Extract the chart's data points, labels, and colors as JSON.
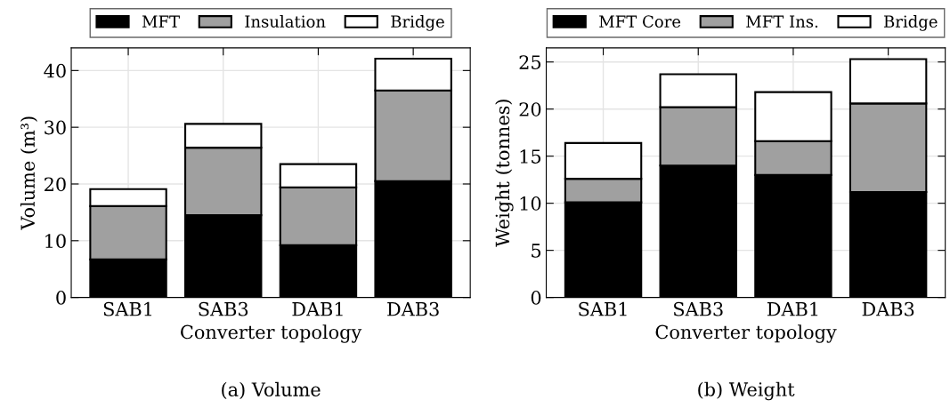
{
  "chart_data": [
    {
      "type": "bar",
      "stacked": true,
      "xlabel": "Converter topology",
      "ylabel": "Volume (m³)",
      "categories": [
        "SAB1",
        "SAB3",
        "DAB1",
        "DAB3"
      ],
      "series": [
        {
          "name": "MFT",
          "color": "#000000",
          "values": [
            6.7,
            14.5,
            9.2,
            20.5
          ]
        },
        {
          "name": "Insulation",
          "color": "#a0a0a0",
          "values": [
            9.4,
            11.9,
            10.2,
            16.0
          ]
        },
        {
          "name": "Bridge",
          "color": "#ffffff",
          "values": [
            3.0,
            4.2,
            4.1,
            5.6
          ]
        }
      ],
      "ylim": [
        0,
        44
      ],
      "yticks": [
        0,
        10,
        20,
        30,
        40
      ],
      "grid": true,
      "legend": "top",
      "annotations": [
        "(a) Volume"
      ]
    },
    {
      "type": "bar",
      "stacked": true,
      "xlabel": "Converter topology",
      "ylabel": "Weight (tonnes)",
      "categories": [
        "SAB1",
        "SAB3",
        "DAB1",
        "DAB3"
      ],
      "series": [
        {
          "name": "MFT Core",
          "color": "#000000",
          "values": [
            10.1,
            14.0,
            13.0,
            11.2
          ]
        },
        {
          "name": "MFT Ins.",
          "color": "#a0a0a0",
          "values": [
            2.5,
            6.2,
            3.6,
            9.4
          ]
        },
        {
          "name": "Bridge",
          "color": "#ffffff",
          "values": [
            3.8,
            3.5,
            5.2,
            4.7
          ]
        }
      ],
      "ylim": [
        0,
        26.5
      ],
      "yticks": [
        0,
        5,
        10,
        15,
        20,
        25
      ],
      "grid": true,
      "legend": "top",
      "annotations": [
        "(b) Weight"
      ]
    }
  ]
}
